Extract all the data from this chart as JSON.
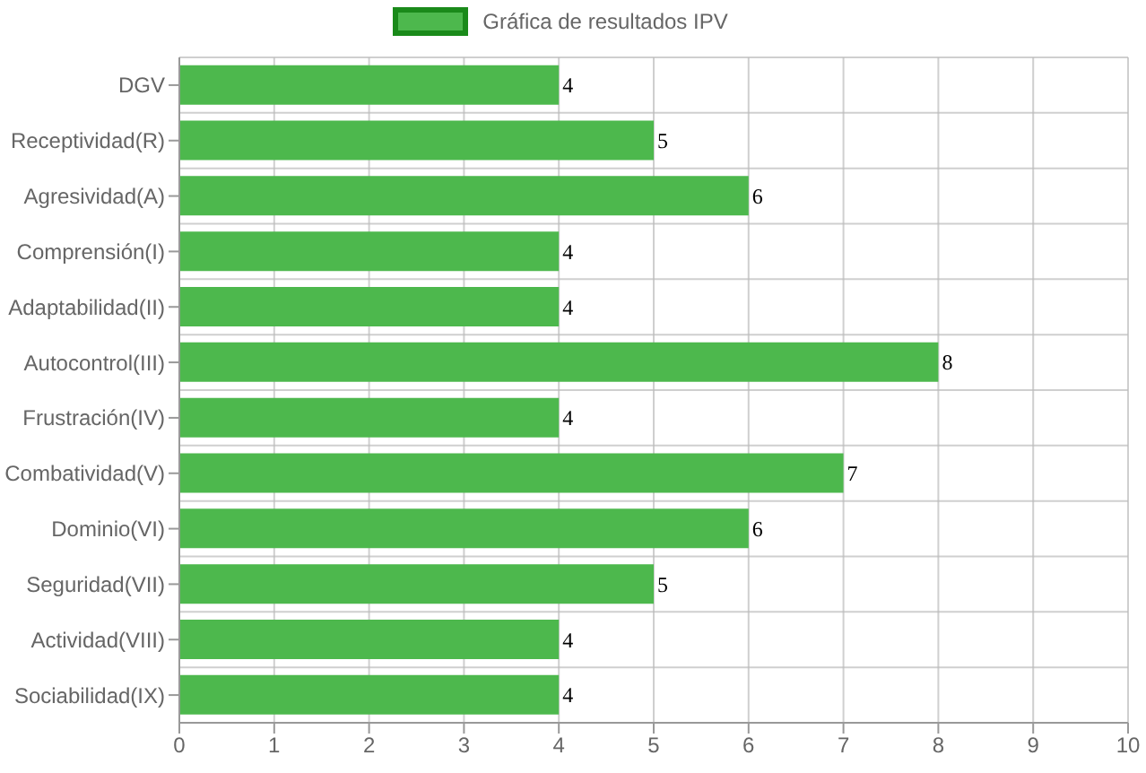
{
  "chart_data": {
    "type": "bar",
    "orientation": "horizontal",
    "categories": [
      "DGV",
      "Receptividad(R)",
      "Agresividad(A)",
      "Comprensión(I)",
      "Adaptabilidad(II)",
      "Autocontrol(III)",
      "Frustración(IV)",
      "Combatividad(V)",
      "Dominio(VI)",
      "Seguridad(VII)",
      "Actividad(VIII)",
      "Sociabilidad(IX)"
    ],
    "series": [
      {
        "name": "Gráfica de resultados IPV",
        "color": "#4db84d",
        "values": [
          4,
          5,
          6,
          4,
          4,
          8,
          4,
          7,
          6,
          5,
          4,
          4
        ]
      }
    ],
    "xlim": [
      0,
      10
    ],
    "xticks": [
      0,
      1,
      2,
      3,
      4,
      5,
      6,
      7,
      8,
      9,
      10
    ],
    "grid": true,
    "legend": "top",
    "data_labels": true
  }
}
